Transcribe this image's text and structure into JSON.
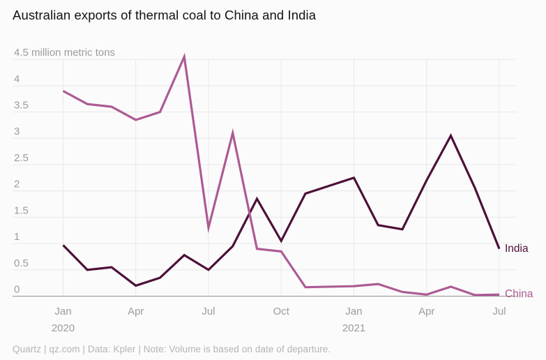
{
  "page": {
    "title": "Australian exports of thermal coal to China and India",
    "footer": "Quartz | qz.com | Data: Kpler | Note: Volume is based on date of departure."
  },
  "colors": {
    "background": "#fbfbfb",
    "gridline": "#e8e8e8",
    "axis_line": "#8f8f8f",
    "tick_label": "#9c9c9c",
    "title": "#121212",
    "footer": "#b4b4b4",
    "china_line": "#ac5b94",
    "india_line": "#4c1039"
  },
  "chart_data": {
    "type": "line",
    "title": "Australian exports of thermal coal to China and India",
    "xlabel": "",
    "ylabel": "million metric tons",
    "unit_label": "4.5 million metric tons",
    "ylim": [
      0,
      4.5
    ],
    "y_ticks": [
      4.5,
      4,
      3.5,
      3,
      2.5,
      2,
      1.5,
      1,
      0.5,
      0
    ],
    "grid": true,
    "legend_position": "line-end-labels",
    "x": [
      "Jan 2020",
      "Feb 2020",
      "Mar 2020",
      "Apr 2020",
      "May 2020",
      "Jun 2020",
      "Jul 2020",
      "Aug 2020",
      "Sep 2020",
      "Oct 2020",
      "Nov 2020",
      "Dec 2020",
      "Jan 2021",
      "Feb 2021",
      "Mar 2021",
      "Apr 2021",
      "May 2021",
      "Jun 2021",
      "Jul 2021"
    ],
    "x_tick_indices": [
      0,
      3,
      6,
      9,
      12,
      15,
      18
    ],
    "x_tick_labels": [
      "Jan",
      "Apr",
      "Jul",
      "Oct",
      "Jan",
      "Apr",
      "Jul"
    ],
    "year_labels": [
      {
        "index": 0,
        "text": "2020"
      },
      {
        "index": 12,
        "text": "2021"
      }
    ],
    "series": [
      {
        "name": "India",
        "label": "India",
        "color": "#4c1039",
        "values": [
          0.97,
          0.5,
          0.55,
          0.2,
          0.35,
          0.78,
          0.5,
          0.95,
          1.85,
          1.05,
          1.95,
          2.1,
          2.25,
          1.35,
          1.27,
          2.2,
          3.05,
          2.05,
          0.9
        ]
      },
      {
        "name": "China",
        "label": "China",
        "color": "#ac5b94",
        "values": [
          3.9,
          3.65,
          3.6,
          3.35,
          3.5,
          4.55,
          1.3,
          3.1,
          0.9,
          0.85,
          0.17,
          0.18,
          0.19,
          0.23,
          0.08,
          0.03,
          0.18,
          0.02,
          0.03
        ]
      }
    ]
  }
}
